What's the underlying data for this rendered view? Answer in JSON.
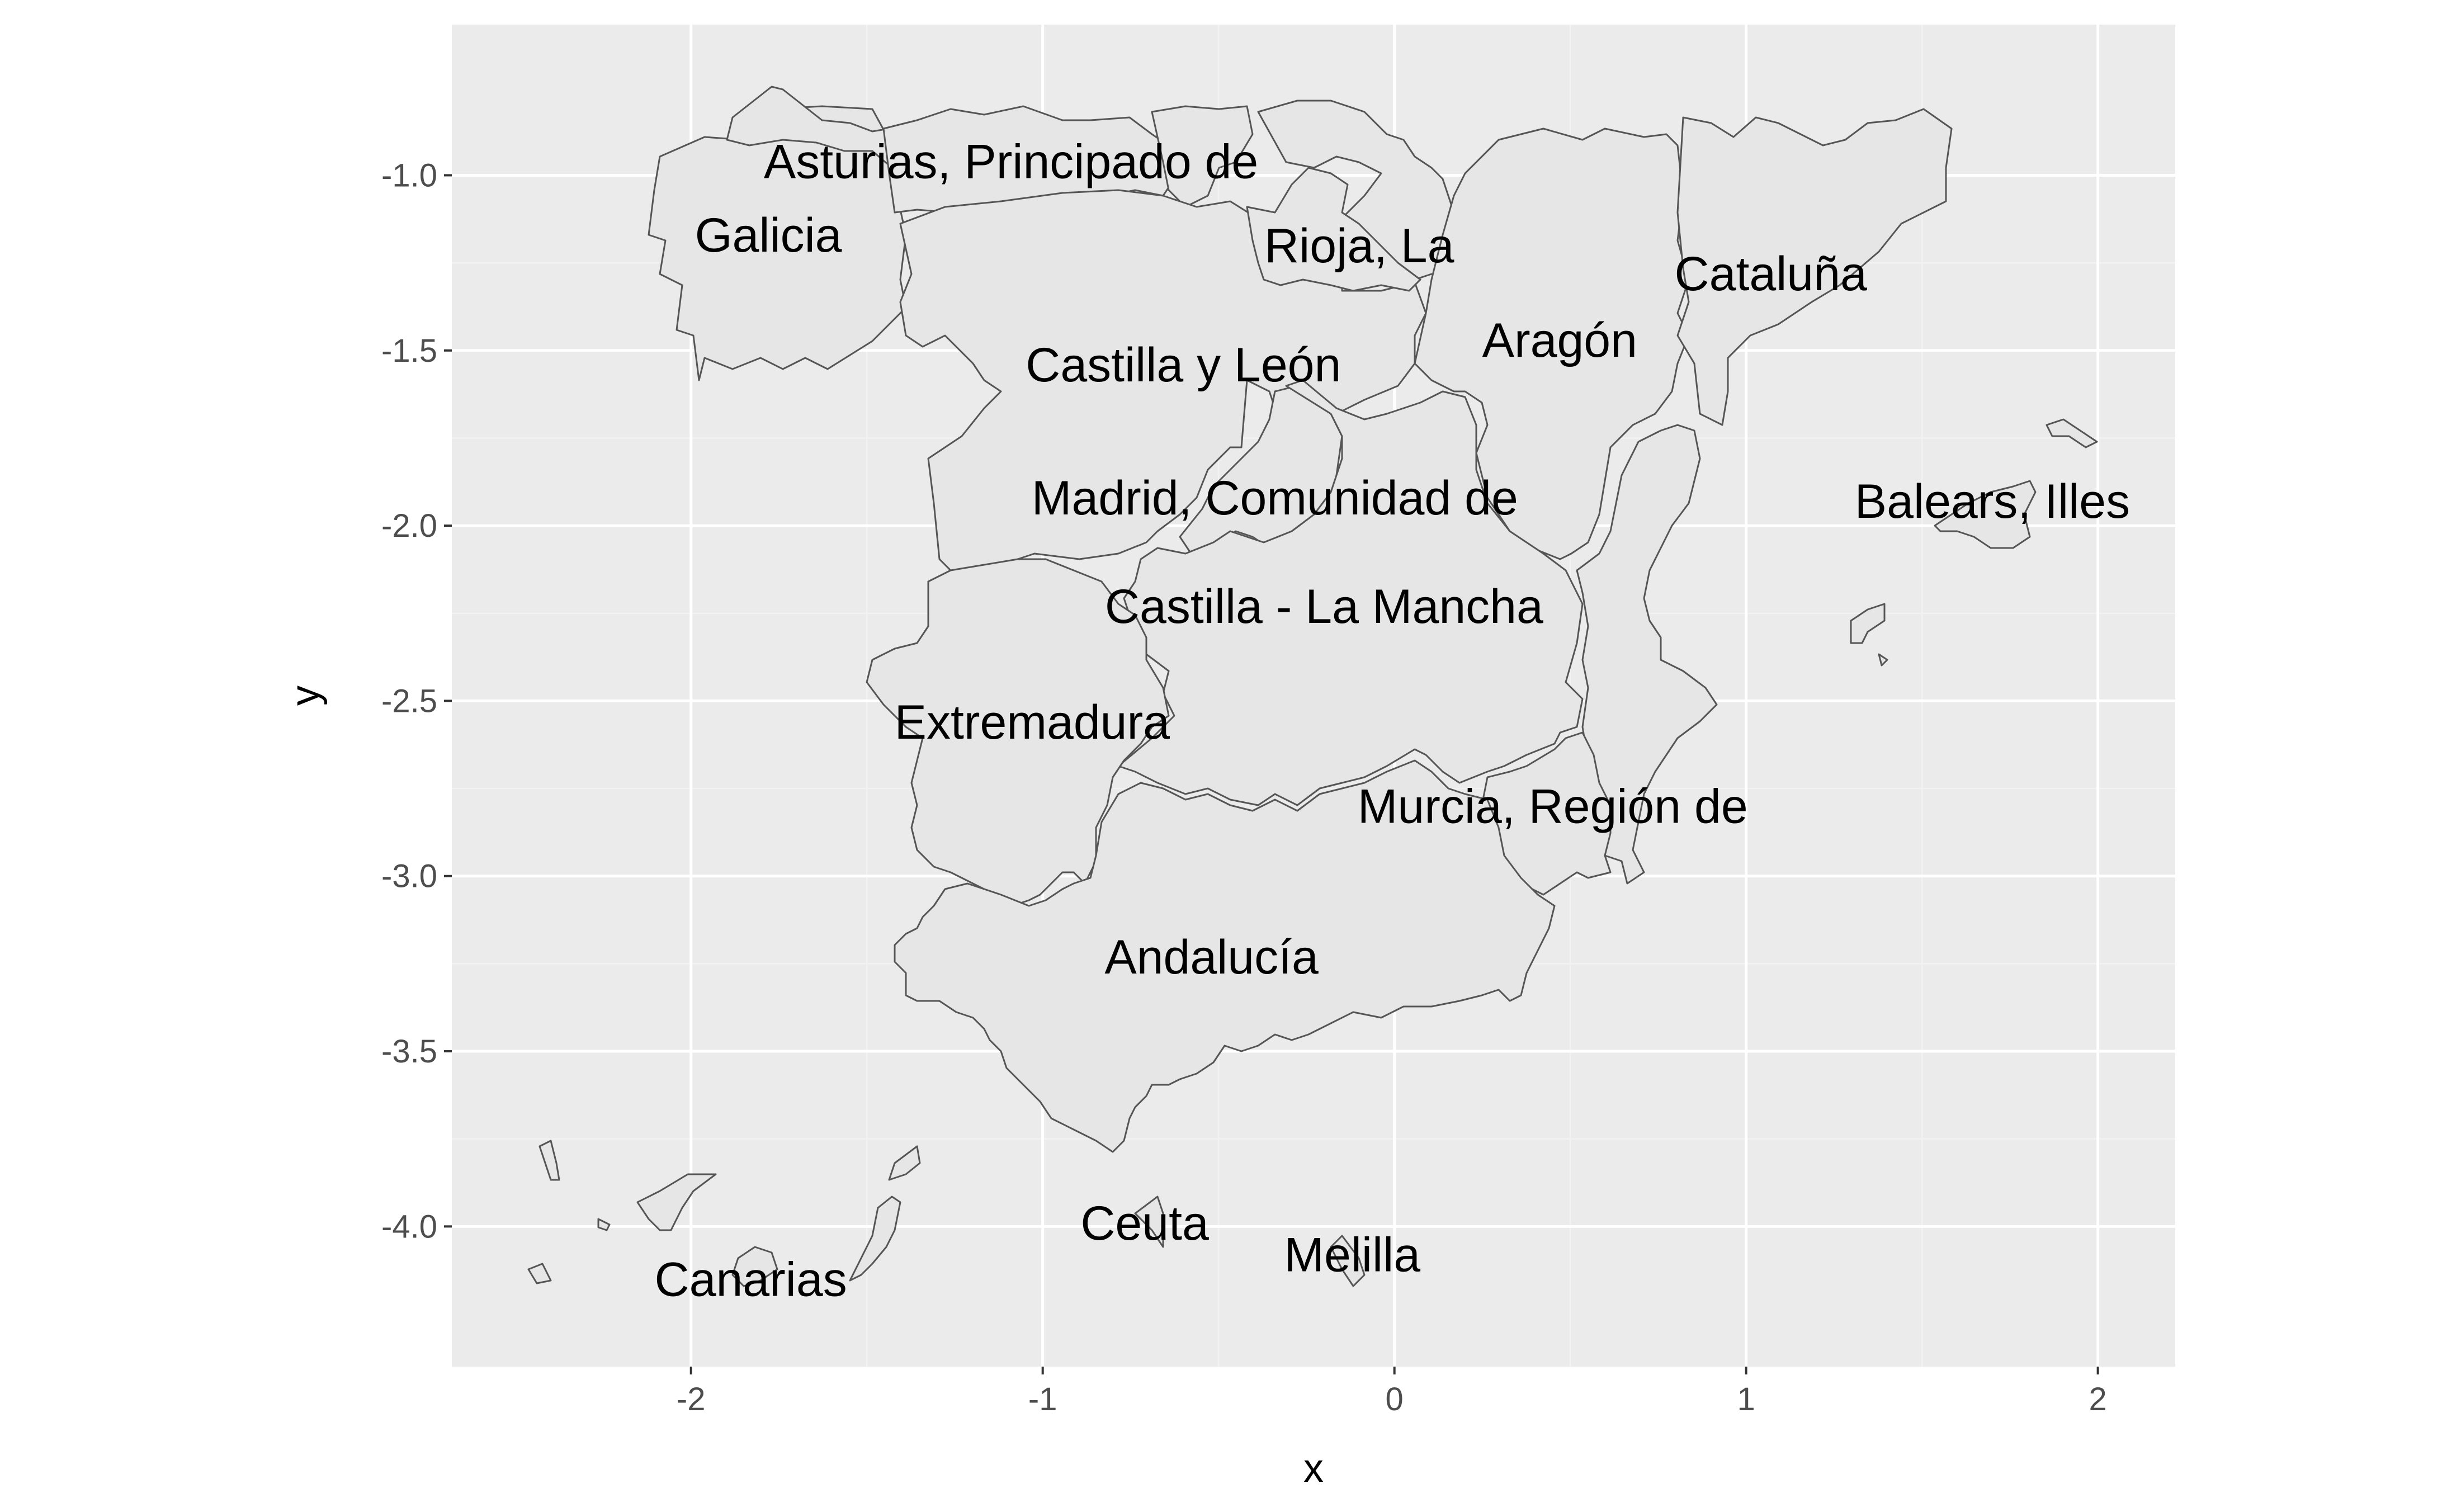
{
  "chart_data": {
    "type": "map",
    "xlabel": "x",
    "ylabel": "y",
    "xlim": [
      -2.68,
      2.22
    ],
    "ylim": [
      -4.4,
      -0.57
    ],
    "x_ticks": [
      -2,
      -1,
      0,
      1,
      2
    ],
    "x_tick_labels": [
      "-2",
      "-1",
      "0",
      "1",
      "2"
    ],
    "y_ticks": [
      -1.0,
      -1.5,
      -2.0,
      -2.5,
      -3.0,
      -3.5,
      -4.0
    ],
    "y_tick_labels": [
      "-1.0",
      "-1.5",
      "-2.0",
      "-2.5",
      "-3.0",
      "-3.5",
      "-4.0"
    ],
    "grid": true,
    "colors": {
      "panel": "#ebebeb",
      "region_fill": "#e6e6e6",
      "region_stroke": "#555555"
    },
    "regions": [
      {
        "name": "Asturias, Principado de",
        "label_x": -1.09,
        "label_y": -0.96
      },
      {
        "name": "Galicia",
        "label_x": -1.78,
        "label_y": -1.17
      },
      {
        "name": "Rioja, La",
        "label_x": -0.1,
        "label_y": -1.2
      },
      {
        "name": "Cataluña",
        "label_x": 1.07,
        "label_y": -1.28
      },
      {
        "name": "Aragón",
        "label_x": 0.47,
        "label_y": -1.47
      },
      {
        "name": "Castilla y León",
        "label_x": -0.6,
        "label_y": -1.54
      },
      {
        "name": "Madrid, Comunidad de",
        "label_x": -0.34,
        "label_y": -1.92
      },
      {
        "name": "Balears, Illes",
        "label_x": 1.7,
        "label_y": -1.93
      },
      {
        "name": "Castilla - La Mancha",
        "label_x": -0.2,
        "label_y": -2.23
      },
      {
        "name": "Extremadura",
        "label_x": -1.03,
        "label_y": -2.56
      },
      {
        "name": "Murcia, Región de",
        "label_x": 0.45,
        "label_y": -2.8
      },
      {
        "name": "Andalucía",
        "label_x": -0.52,
        "label_y": -3.23
      },
      {
        "name": "Ceuta",
        "label_x": -0.71,
        "label_y": -3.99
      },
      {
        "name": "Melilla",
        "label_x": -0.12,
        "label_y": -4.08
      },
      {
        "name": "Canarias",
        "label_x": -1.83,
        "label_y": -4.15
      }
    ]
  }
}
